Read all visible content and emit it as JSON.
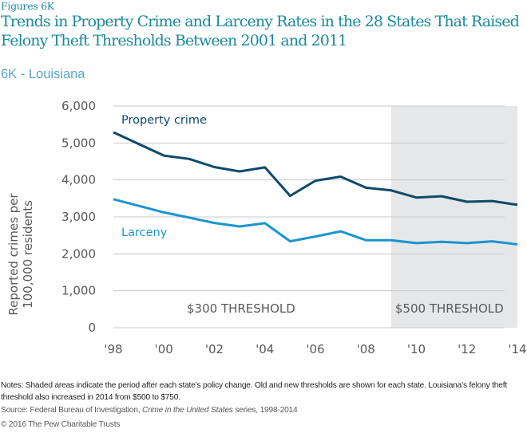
{
  "header": {
    "figure_label": "Figures 6K",
    "title": "Trends in Property Crime and Larceny Rates in the 28 States That Raised Felony Theft Thresholds Between 2001 and 2011",
    "subtitle": "6K - Louisiana"
  },
  "chart_data": {
    "type": "line",
    "title": "6K - Louisiana",
    "xlabel": "",
    "ylabel": "Reported crimes per 100,000 residents",
    "ylabel_lines": [
      "Reported crimes per",
      "100,000 residents"
    ],
    "x": [
      1998,
      1999,
      2000,
      2001,
      2002,
      2003,
      2004,
      2005,
      2006,
      2007,
      2008,
      2009,
      2010,
      2011,
      2012,
      2013,
      2014
    ],
    "xlim": [
      1998,
      2014
    ],
    "ylim": [
      0,
      6000
    ],
    "x_ticks": [
      1998,
      2000,
      2002,
      2004,
      2006,
      2008,
      2010,
      2012,
      2014
    ],
    "x_tick_labels": [
      "'98",
      "'00",
      "'02",
      "'04",
      "'06",
      "'08",
      "'10",
      "'12",
      "'14"
    ],
    "y_ticks": [
      0,
      1000,
      2000,
      3000,
      4000,
      5000,
      6000
    ],
    "y_tick_labels": [
      "0",
      "1,000",
      "2,000",
      "3,000",
      "4,000",
      "5,000",
      "6,000"
    ],
    "grid": true,
    "series": [
      {
        "name": "Property crime",
        "color": "#0d4a6b",
        "values": [
          5290,
          4975,
          4660,
          4570,
          4350,
          4230,
          4340,
          3570,
          3980,
          4090,
          3790,
          3717,
          3525,
          3560,
          3410,
          3430,
          3325
        ]
      },
      {
        "name": "Larceny",
        "color": "#1a95cf",
        "values": [
          3480,
          3300,
          3120,
          2980,
          2835,
          2740,
          2830,
          2340,
          2468,
          2610,
          2370,
          2370,
          2290,
          2325,
          2290,
          2340,
          2255
        ]
      }
    ],
    "shaded_regions": [
      {
        "x_start": 2009,
        "x_end": 2014,
        "color": "#e6e7e8"
      }
    ],
    "annotations": [
      {
        "text": "$300 THRESHOLD",
        "region": "before"
      },
      {
        "text": "$500 THRESHOLD",
        "region": "after"
      }
    ],
    "legend": "inline-labels"
  },
  "footer": {
    "notes": "Notes: Shaded areas indicate the period after each state’s policy change. Old and new thresholds are shown for each state. Louisiana’s felony theft threshold also increased in 2014 from $500 to $750.",
    "source_prefix": "Source: Federal Bureau of Investigation, ",
    "source_italic": "Crime in the United States",
    "source_suffix": " series, 1998-2014",
    "copyright": "© 2016 The Pew Charitable Trusts"
  },
  "colors": {
    "title": "#1a8a9c",
    "subtitle": "#5ba6c0",
    "property_crime": "#0d4a6b",
    "larceny": "#1a95cf",
    "shade": "#e6e7e8",
    "gridline": "#c8c8c8",
    "axis_text": "#58595b"
  }
}
